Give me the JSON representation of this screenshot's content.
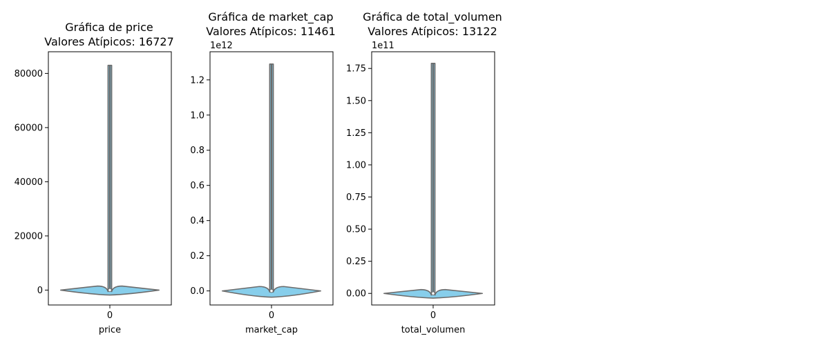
{
  "figure": {
    "background": "#ffffff"
  },
  "style": {
    "violin_fill": "#87ceeb",
    "violin_edge": "#6b6b6b",
    "axes_edge": "#000000"
  },
  "chart_data": [
    {
      "type": "violin",
      "title_line1": "Gráfica de price",
      "title_line2": "Valores Atípicos: 16727",
      "xlabel": "price",
      "x_ticks": [
        "0"
      ],
      "offset_text": "",
      "ylim": [
        -5500,
        88000
      ],
      "y_ticks": [
        0,
        20000,
        40000,
        60000,
        80000
      ],
      "y_tick_labels": [
        "0",
        "20000",
        "40000",
        "60000",
        "80000"
      ],
      "violin": {
        "min": -800,
        "max": 83000,
        "median": 0,
        "bulb_top": 1500,
        "bulb_bottom": -800,
        "tail_width": 0.02
      }
    },
    {
      "type": "violin",
      "title_line1": "Gráfica de market_cap",
      "title_line2": "Valores Atípicos: 11461",
      "xlabel": "market_cap",
      "x_ticks": [
        "0"
      ],
      "offset_text": "1e12",
      "ylim": [
        -0.08,
        1.36
      ],
      "y_ticks": [
        0.0,
        0.2,
        0.4,
        0.6,
        0.8,
        1.0,
        1.2
      ],
      "y_tick_labels": [
        "0.0",
        "0.2",
        "0.4",
        "0.6",
        "0.8",
        "1.0",
        "1.2"
      ],
      "violin": {
        "min": -0.02,
        "max": 1.29,
        "median": 0,
        "bulb_top": 0.025,
        "bulb_bottom": -0.02,
        "tail_width": 0.02
      }
    },
    {
      "type": "violin",
      "title_line1": "Gráfica de total_volumen",
      "title_line2": "Valores Atípicos: 13122",
      "xlabel": "total_volumen",
      "x_ticks": [
        "0"
      ],
      "offset_text": "1e11",
      "ylim": [
        -0.09,
        1.88
      ],
      "y_ticks": [
        0.0,
        0.25,
        0.5,
        0.75,
        1.0,
        1.25,
        1.5,
        1.75
      ],
      "y_tick_labels": [
        "0.00",
        "0.25",
        "0.50",
        "0.75",
        "1.00",
        "1.25",
        "1.50",
        "1.75"
      ],
      "violin": {
        "min": -0.015,
        "max": 1.79,
        "median": 0,
        "bulb_top": 0.03,
        "bulb_bottom": -0.015,
        "tail_width": 0.02
      }
    }
  ]
}
